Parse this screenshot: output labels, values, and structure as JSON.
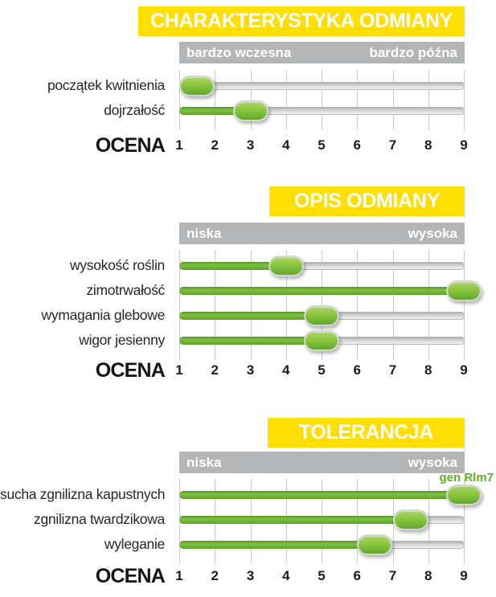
{
  "colors": {
    "yellow": "#ffde00",
    "gray_bar": "#b3b5b7",
    "green_fill": "#7fc043",
    "green_knob": "#8cc63e",
    "green_dark": "#559727",
    "green_text": "#5fae2a",
    "track_gray": "#d9dadb",
    "text_dark": "#262626"
  },
  "scale": {
    "min": 1,
    "max": 9,
    "ticks": [
      "1",
      "2",
      "3",
      "4",
      "5",
      "6",
      "7",
      "8",
      "9"
    ],
    "ocena_label": "OCENA"
  },
  "sections": [
    {
      "title": "CHARAKTERYSTYKA ODMIANY",
      "scale_left": "bardzo wczesna",
      "scale_right": "bardzo późna",
      "rows": [
        {
          "label": "początek kwitnienia",
          "value": 1.5
        },
        {
          "label": "dojrzałość",
          "value": 3
        }
      ]
    },
    {
      "title": "OPIS ODMIANY",
      "scale_left": "niska",
      "scale_right": "wysoka",
      "rows": [
        {
          "label": "wysokość roślin",
          "value": 4
        },
        {
          "label": "zimotrwałość",
          "value": 9
        },
        {
          "label": "wymagania glebowe",
          "value": 5
        },
        {
          "label": "wigor jesienny",
          "value": 5
        }
      ]
    },
    {
      "title": "TOLERANCJA",
      "scale_left": "niska",
      "scale_right": "wysoka",
      "rows": [
        {
          "label": "sucha zgnilizna kapustnych",
          "value": 9,
          "annotation": "gen Rlm7"
        },
        {
          "label": "zgnilizna twardzikowa",
          "value": 7.5
        },
        {
          "label": "wyleganie",
          "value": 6.5
        }
      ]
    }
  ],
  "chart_data": [
    {
      "type": "bar",
      "title": "CHARAKTERYSTYKA ODMIANY",
      "orientation": "horizontal",
      "xlabel": "OCENA",
      "x_range": [
        1,
        9
      ],
      "x_ticks": [
        1,
        2,
        3,
        4,
        5,
        6,
        7,
        8,
        9
      ],
      "scale_endpoints": [
        "bardzo wczesna",
        "bardzo późna"
      ],
      "categories": [
        "początek kwitnienia",
        "dojrzałość"
      ],
      "values": [
        1.5,
        3
      ],
      "grid": true,
      "legend": false
    },
    {
      "type": "bar",
      "title": "OPIS ODMIANY",
      "orientation": "horizontal",
      "xlabel": "OCENA",
      "x_range": [
        1,
        9
      ],
      "x_ticks": [
        1,
        2,
        3,
        4,
        5,
        6,
        7,
        8,
        9
      ],
      "scale_endpoints": [
        "niska",
        "wysoka"
      ],
      "categories": [
        "wysokość roślin",
        "zimotrwałość",
        "wymagania glebowe",
        "wigor jesienny"
      ],
      "values": [
        4,
        9,
        5,
        5
      ],
      "grid": true,
      "legend": false
    },
    {
      "type": "bar",
      "title": "TOLERANCJA",
      "orientation": "horizontal",
      "xlabel": "OCENA",
      "x_range": [
        1,
        9
      ],
      "x_ticks": [
        1,
        2,
        3,
        4,
        5,
        6,
        7,
        8,
        9
      ],
      "scale_endpoints": [
        "niska",
        "wysoka"
      ],
      "categories": [
        "sucha zgnilizna kapustnych",
        "zgnilizna twardzikowa",
        "wyleganie"
      ],
      "values": [
        9,
        7.5,
        6.5
      ],
      "annotations": [
        {
          "category": "sucha zgnilizna kapustnych",
          "text": "gen Rlm7"
        }
      ],
      "grid": true,
      "legend": false
    }
  ]
}
